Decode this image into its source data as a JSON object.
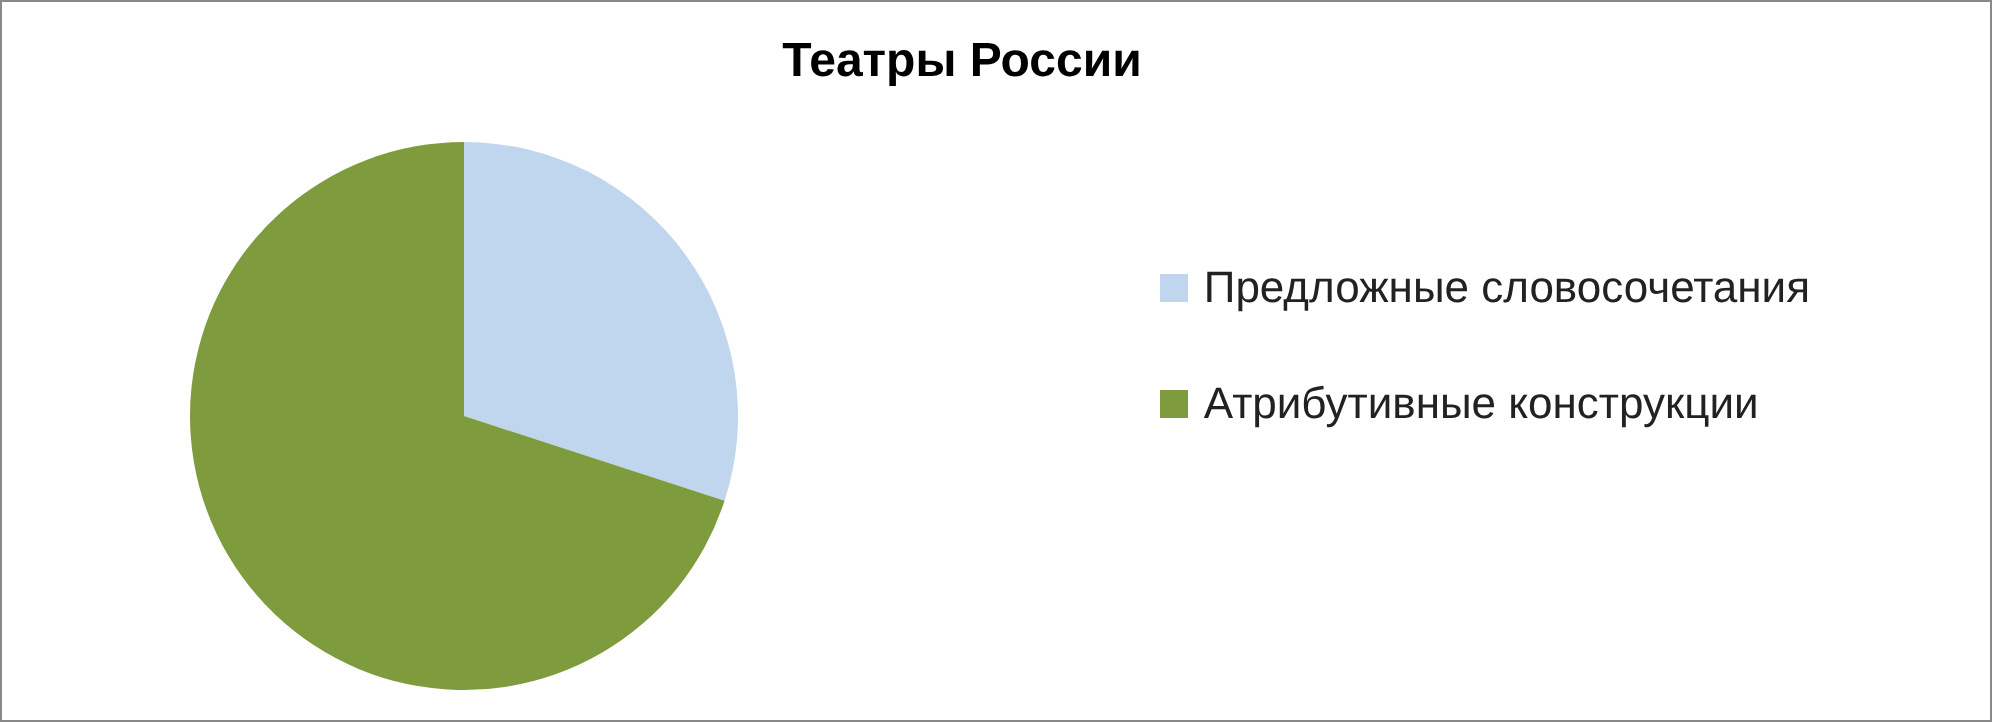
{
  "chart_data": {
    "type": "pie",
    "title": "Театры России",
    "categories": [
      "Предложные словосочетания",
      "Атрибутивные конструкции"
    ],
    "values": [
      30,
      70
    ],
    "colors": [
      "#c0d5ee",
      "#7e9c3e"
    ],
    "legend": "right"
  }
}
